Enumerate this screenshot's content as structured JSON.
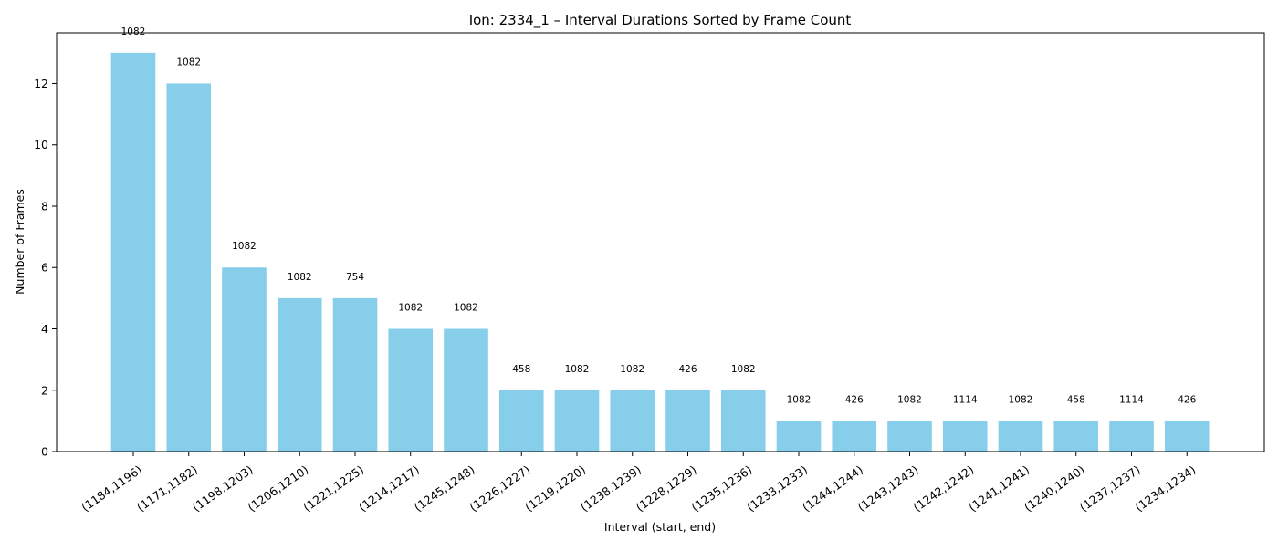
{
  "chart_data": {
    "type": "bar",
    "title": "Ion: 2334_1 – Interval Durations Sorted by Frame Count",
    "xlabel": "Interval (start, end)",
    "ylabel": "Number of Frames",
    "categories": [
      "(1184,1196)",
      "(1171,1182)",
      "(1198,1203)",
      "(1206,1210)",
      "(1221,1225)",
      "(1214,1217)",
      "(1245,1248)",
      "(1226,1227)",
      "(1219,1220)",
      "(1238,1239)",
      "(1228,1229)",
      "(1235,1236)",
      "(1233,1233)",
      "(1244,1244)",
      "(1243,1243)",
      "(1242,1242)",
      "(1241,1241)",
      "(1240,1240)",
      "(1237,1237)",
      "(1234,1234)"
    ],
    "values": [
      13,
      12,
      6,
      5,
      5,
      4,
      4,
      2,
      2,
      2,
      2,
      2,
      1,
      1,
      1,
      1,
      1,
      1,
      1,
      1
    ],
    "bar_labels": [
      "1082",
      "1082",
      "1082",
      "1082",
      "754",
      "1082",
      "1082",
      "458",
      "1082",
      "1082",
      "426",
      "1082",
      "1082",
      "426",
      "1082",
      "1114",
      "1082",
      "458",
      "1114",
      "426"
    ],
    "ylim": [
      0,
      13.65
    ],
    "yticks": [
      0,
      2,
      4,
      6,
      8,
      10,
      12
    ],
    "bar_color": "#87ceeb",
    "grid": false,
    "legend": "none"
  }
}
